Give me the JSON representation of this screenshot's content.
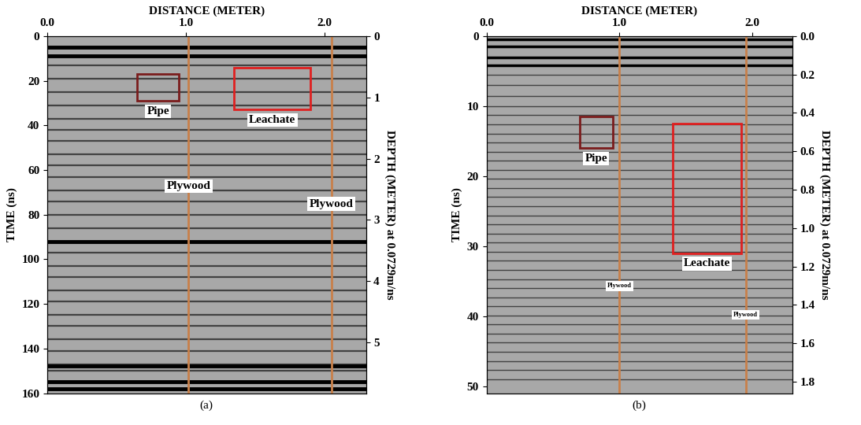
{
  "chart_data": [
    {
      "type": "radargram",
      "title": "(a)",
      "xlabel": "DISTANCE (METER)",
      "ylabel": "TIME (ns)",
      "y2label": "DEPTH (METER) at 0.0729m/ns",
      "xlim": [
        0,
        2.3
      ],
      "xticks": [
        {
          "value": 0,
          "label": "0.0"
        },
        {
          "value": 1,
          "label": "1.0"
        },
        {
          "value": 2,
          "label": "2.0"
        }
      ],
      "ylim": [
        160,
        0
      ],
      "yticks": [
        0,
        20,
        40,
        60,
        80,
        100,
        120,
        140,
        160
      ],
      "y2lim": [
        5.83,
        0
      ],
      "y2ticks": [
        0,
        1,
        2,
        3,
        4,
        5
      ],
      "reflections": [
        5,
        9,
        13,
        19,
        25,
        31,
        37,
        42,
        47,
        53,
        58,
        63,
        69,
        74,
        80,
        86,
        92,
        97,
        103,
        108,
        114,
        119,
        125,
        130,
        136,
        141,
        147,
        150,
        155,
        158
      ],
      "strong_reflections": [
        5,
        9,
        92,
        148,
        155,
        158
      ],
      "regions": [
        {
          "label": "Pipe",
          "x": [
            0.65,
            0.95
          ],
          "y": [
            17,
            29
          ],
          "color": "#7b1c1c"
        },
        {
          "label": "Leachate",
          "x": [
            1.35,
            1.9
          ],
          "y": [
            14,
            33
          ],
          "color": "#e02020"
        }
      ],
      "vlines": [
        {
          "label": "Plywood",
          "x": 1.02,
          "color": "#c8804a"
        },
        {
          "label": "Plywood",
          "x": 2.05,
          "color": "#c8804a"
        }
      ]
    },
    {
      "type": "radargram",
      "title": "(b)",
      "xlabel": "DISTANCE (METER)",
      "ylabel": "TIME (ns)",
      "y2label": "DEPTH (METER) at 0.0729m/ns",
      "xlim": [
        0,
        2.3
      ],
      "xticks": [
        {
          "value": 0,
          "label": "0.0"
        },
        {
          "value": 1,
          "label": "1.0"
        },
        {
          "value": 2,
          "label": "2.0"
        }
      ],
      "ylim": [
        51,
        0
      ],
      "yticks": [
        0,
        10,
        20,
        30,
        40,
        50
      ],
      "y2lim": [
        1.86,
        0
      ],
      "y2ticks": [
        {
          "value": 0,
          "label": "0.0"
        },
        0.2,
        0.4,
        0.6,
        0.8,
        {
          "value": 1,
          "label": "1.0"
        },
        1.2,
        1.4,
        1.6,
        1.8
      ],
      "reflections": [
        0.5,
        1.5,
        3,
        4.2,
        5.5,
        7,
        8.5,
        10,
        11.3,
        12.6,
        13.9,
        15.2,
        16.5,
        17.8,
        19.1,
        20.4,
        21.7,
        23,
        24.3,
        25.6,
        26.9,
        28.2,
        29.5,
        30.8,
        32.1,
        33.4,
        34.7,
        36,
        37.3,
        38.6,
        39.9,
        41.2,
        42.5,
        43.8,
        45.1,
        46.4,
        47.7,
        49
      ],
      "strong_reflections": [
        0.5,
        1.5,
        3,
        4.2
      ],
      "regions": [
        {
          "label": "Pipe",
          "x": [
            0.7,
            0.95
          ],
          "y": [
            11.5,
            16
          ],
          "color": "#7b1c1c"
        },
        {
          "label": "Leachate",
          "x": [
            1.4,
            1.92
          ],
          "y": [
            12.5,
            31
          ],
          "color": "#e02020"
        }
      ],
      "vlines": [
        {
          "label": "Plywood",
          "x": 1.0,
          "color": "#c8804a"
        },
        {
          "label": "Plywood",
          "x": 1.95,
          "color": "#c8804a"
        }
      ]
    }
  ]
}
